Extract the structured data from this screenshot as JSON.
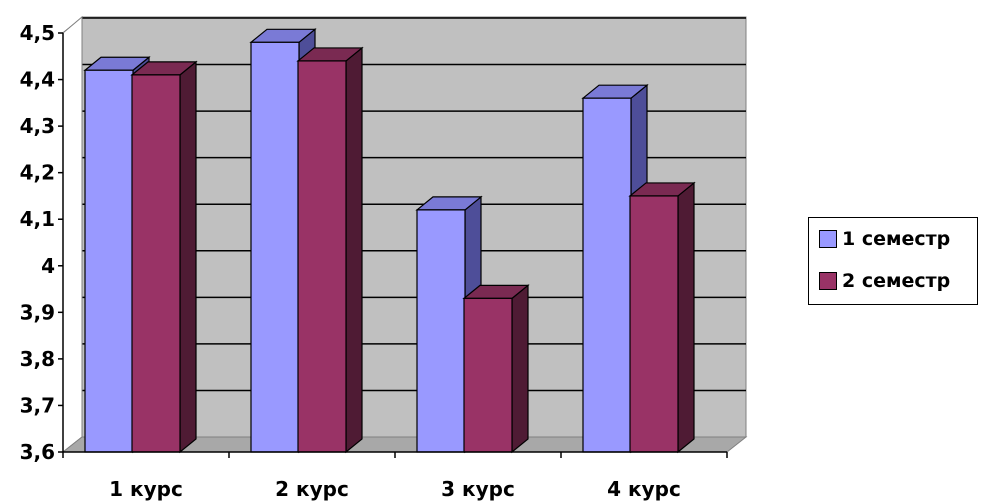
{
  "chart_data": {
    "type": "bar",
    "categories": [
      "1 курс",
      "2 курс",
      "3 курс",
      "4 курс"
    ],
    "series": [
      {
        "name": "1 семестр",
        "values": [
          4.42,
          4.48,
          4.12,
          4.36
        ]
      },
      {
        "name": "2 семестр",
        "values": [
          4.41,
          4.44,
          3.93,
          4.15
        ]
      }
    ],
    "y_ticks": [
      "3,6",
      "3,7",
      "3,8",
      "3,9",
      "4",
      "4,1",
      "4,2",
      "4,3",
      "4,4",
      "4,5"
    ],
    "ylim": [
      3.6,
      4.5
    ],
    "grid": true,
    "legend_position": "right",
    "colors": {
      "series_1_front": "#9999ff",
      "series_1_side": "#4e4e99",
      "series_1_top": "#7a7ad6",
      "series_2_front": "#993366",
      "series_2_side": "#4f1b34",
      "series_2_top": "#7a2a52",
      "plot_back": "#c0c0c0",
      "floor": "#a8a8a8"
    }
  }
}
